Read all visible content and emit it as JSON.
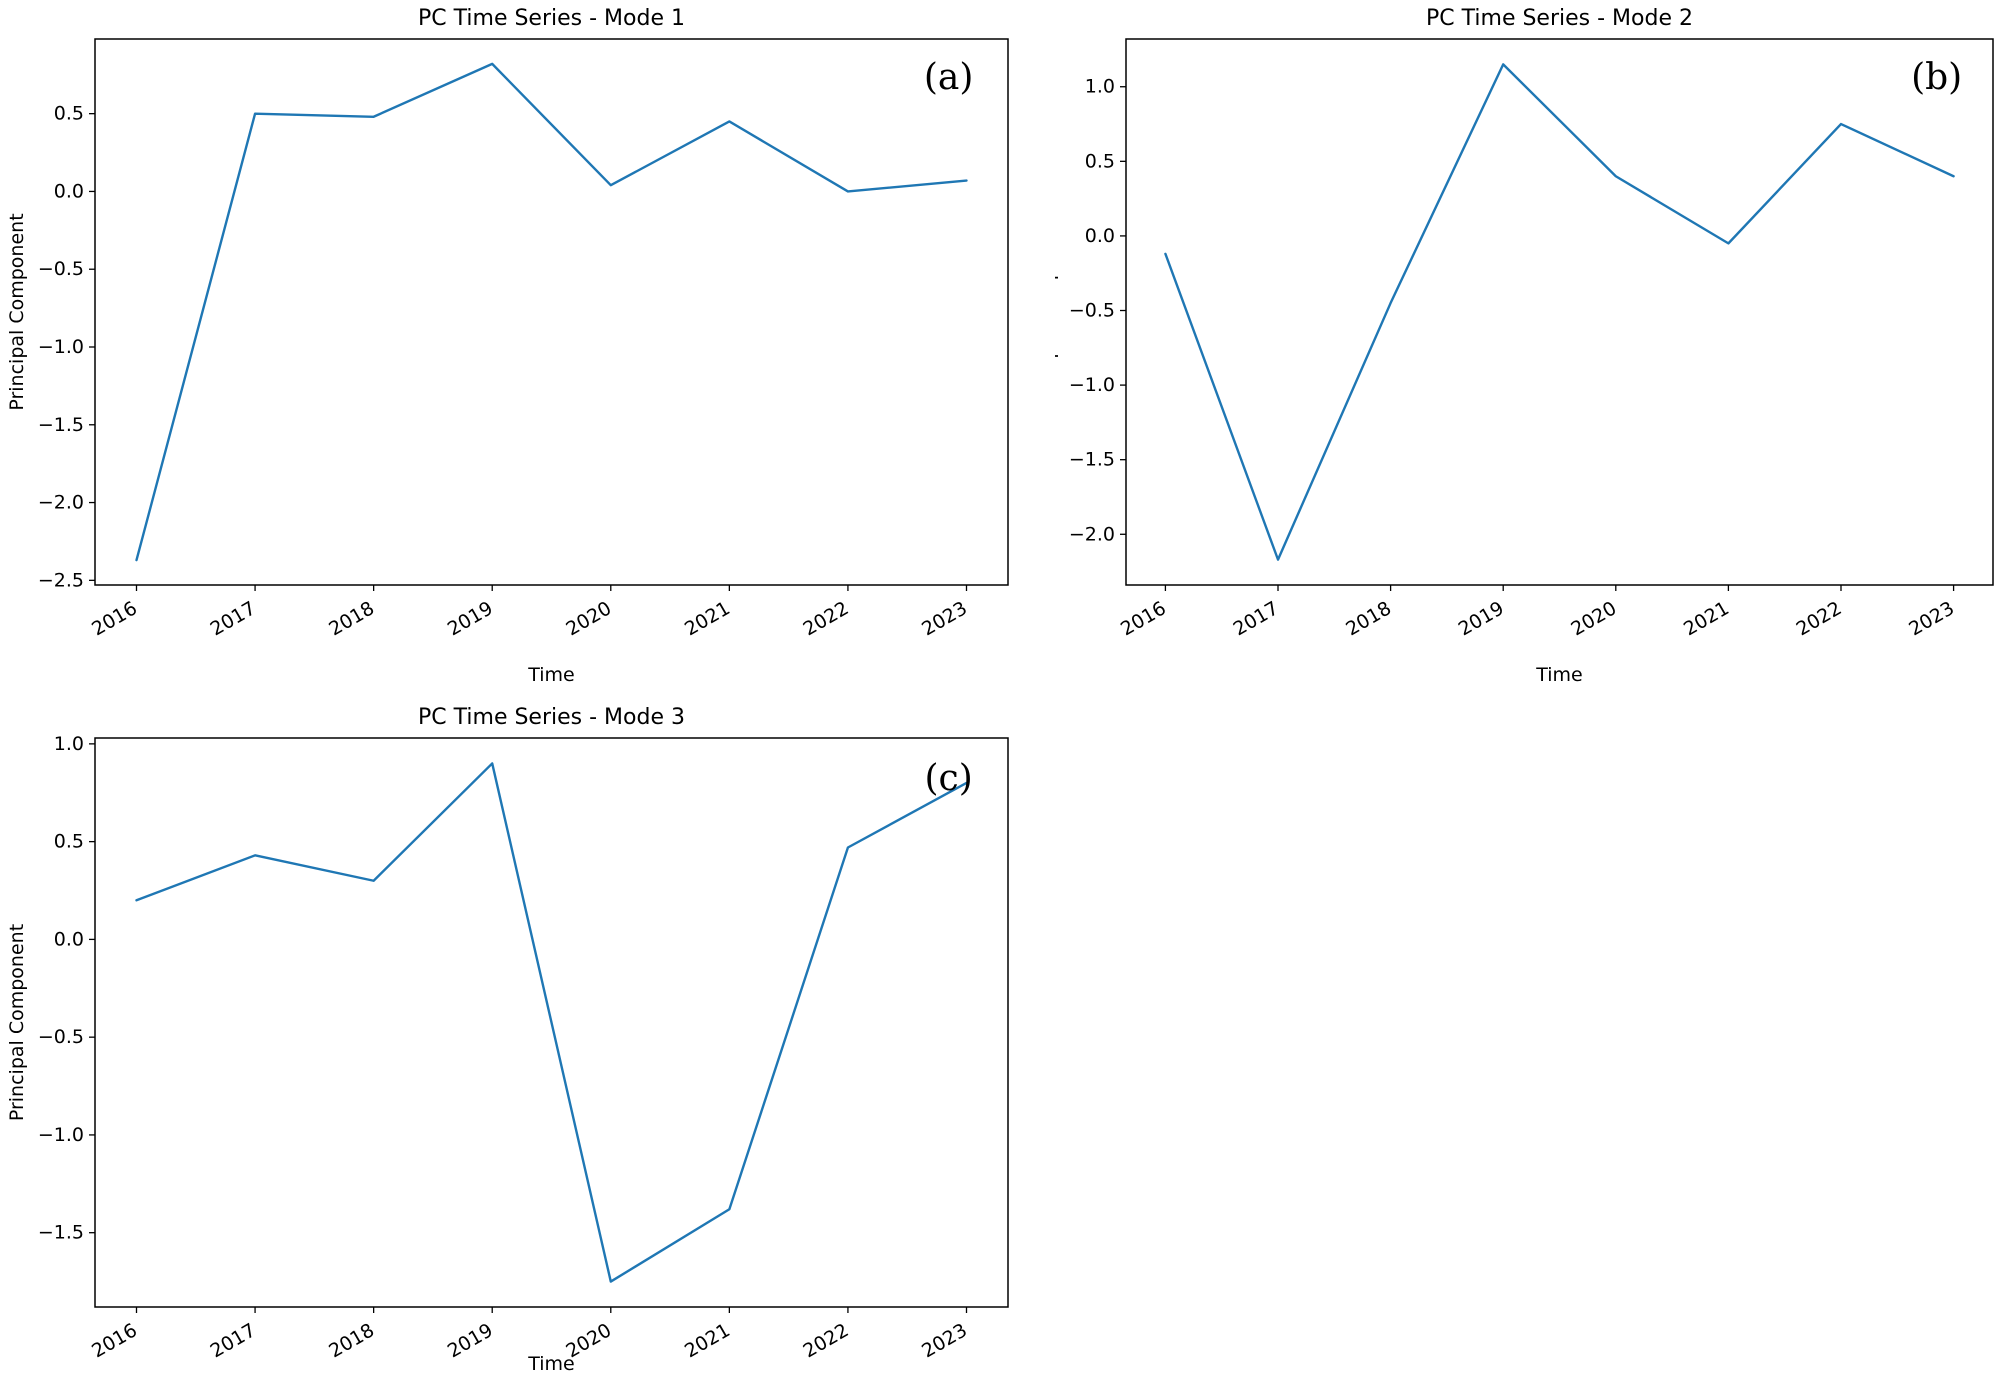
{
  "page": {
    "background": "#ffffff",
    "text_color": "#000000"
  },
  "chart_data": [
    {
      "type": "line",
      "title": "PC Time Series - Mode 1",
      "xlabel": "Time",
      "ylabel": "Principal Component",
      "annotation": "(a)",
      "line_color": "#1f77b4",
      "x": [
        2016,
        2017,
        2018,
        2019,
        2020,
        2021,
        2022,
        2023
      ],
      "values": [
        -2.37,
        0.5,
        0.48,
        0.82,
        0.04,
        0.45,
        0.0,
        0.07
      ],
      "xtick_labels": [
        "2016",
        "2017",
        "2018",
        "2019",
        "2020",
        "2021",
        "2022",
        "2023"
      ],
      "yticks": [
        0.5,
        0.0,
        -0.5,
        -1.0,
        -1.5,
        -2.0,
        -2.5
      ],
      "ylim": [
        -2.53,
        0.98
      ],
      "xlim": [
        2015.65,
        2023.35
      ],
      "grid": false,
      "legend": "none",
      "xtick_rotation": -30
    },
    {
      "type": "line",
      "title": "PC Time Series - Mode 2",
      "xlabel": "Time",
      "ylabel": "Principal Component",
      "annotation": "(b)",
      "line_color": "#1f77b4",
      "x": [
        2016,
        2017,
        2018,
        2019,
        2020,
        2021,
        2022,
        2023
      ],
      "values": [
        -0.12,
        -2.17,
        -0.45,
        1.15,
        0.4,
        -0.05,
        0.75,
        0.4
      ],
      "xtick_labels": [
        "2016",
        "2017",
        "2018",
        "2019",
        "2020",
        "2021",
        "2022",
        "2023"
      ],
      "yticks": [
        1.0,
        0.5,
        0.0,
        -0.5,
        -1.0,
        -1.5,
        -2.0
      ],
      "ylim": [
        -2.34,
        1.32
      ],
      "xlim": [
        2015.65,
        2023.35
      ],
      "grid": false,
      "legend": "none",
      "xtick_rotation": -30
    },
    {
      "type": "line",
      "title": "PC Time Series - Mode 3",
      "xlabel": "Time",
      "ylabel": "Principal Component",
      "annotation": "(c)",
      "line_color": "#1f77b4",
      "x": [
        2016,
        2017,
        2018,
        2019,
        2020,
        2021,
        2022,
        2023
      ],
      "values": [
        0.2,
        0.43,
        0.3,
        0.9,
        -1.75,
        -1.38,
        0.47,
        0.8
      ],
      "xtick_labels": [
        "2016",
        "2017",
        "2018",
        "2019",
        "2020",
        "2021",
        "2022",
        "2023"
      ],
      "yticks": [
        1.0,
        0.5,
        0.0,
        -0.5,
        -1.0,
        -1.5
      ],
      "ylim": [
        -1.88,
        1.03
      ],
      "xlim": [
        2015.65,
        2023.35
      ],
      "grid": false,
      "legend": "none",
      "xtick_rotation": -30
    }
  ]
}
